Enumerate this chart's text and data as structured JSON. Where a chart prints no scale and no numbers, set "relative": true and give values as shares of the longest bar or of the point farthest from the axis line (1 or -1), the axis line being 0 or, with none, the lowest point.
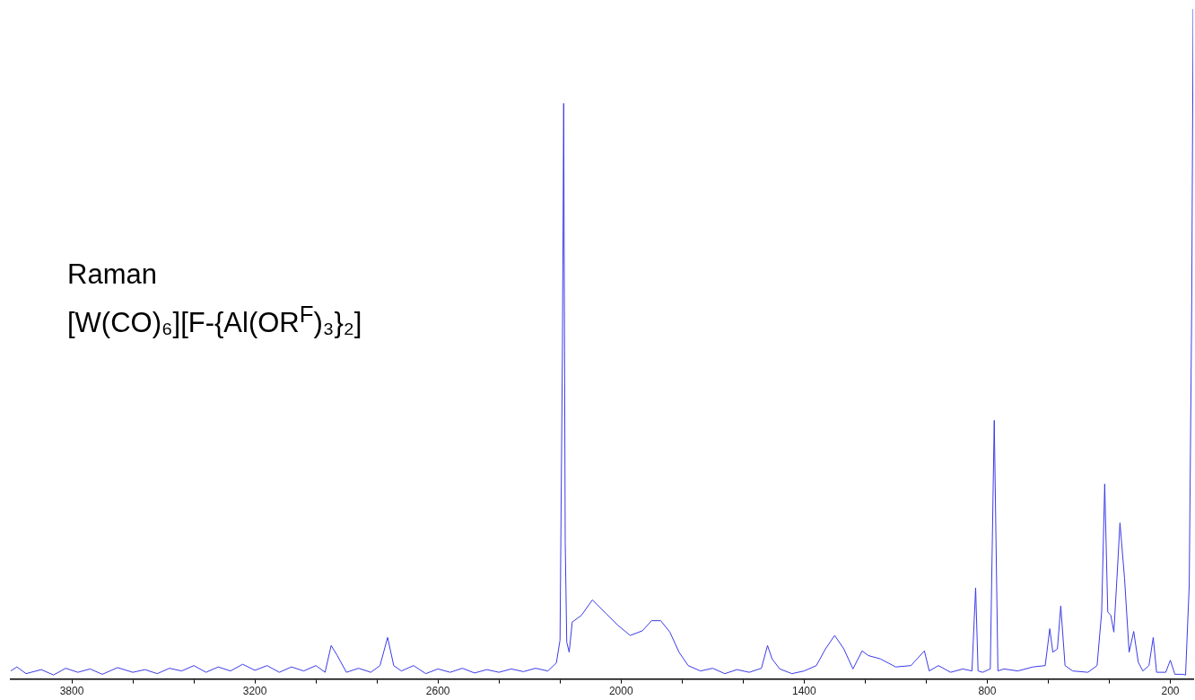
{
  "chart_data": {
    "type": "line",
    "relative": true,
    "annotations": [
      "Raman",
      "[W(CO)₆][F-{Al(OR$^{F}$)₃}₂]"
    ],
    "xlim": [
      4000,
      125
    ],
    "xticks": [
      {
        "value": 3800,
        "label": "3800"
      },
      {
        "value": 3600,
        "label": null
      },
      {
        "value": 3400,
        "label": null
      },
      {
        "value": 3200,
        "label": "3200"
      },
      {
        "value": 3000,
        "label": null
      },
      {
        "value": 2800,
        "label": null
      },
      {
        "value": 2600,
        "label": "2600"
      },
      {
        "value": 2400,
        "label": null
      },
      {
        "value": 2200,
        "label": null
      },
      {
        "value": 2000,
        "label": "2000"
      },
      {
        "value": 1800,
        "label": null
      },
      {
        "value": 1600,
        "label": null
      },
      {
        "value": 1400,
        "label": "1400"
      },
      {
        "value": 1200,
        "label": null
      },
      {
        "value": 1000,
        "label": null
      },
      {
        "value": 800,
        "label": "800"
      },
      {
        "value": 600,
        "label": null
      },
      {
        "value": 400,
        "label": null
      },
      {
        "value": 200,
        "label": "200"
      }
    ],
    "marker": "none",
    "line_style": "solid",
    "series": [
      {
        "color": "#3b3be8",
        "x": [
          4000,
          3980,
          3950,
          3900,
          3860,
          3820,
          3780,
          3740,
          3700,
          3650,
          3600,
          3560,
          3520,
          3480,
          3440,
          3400,
          3360,
          3320,
          3280,
          3240,
          3200,
          3160,
          3120,
          3080,
          3040,
          3000,
          2970,
          2950,
          2930,
          2900,
          2860,
          2820,
          2790,
          2765,
          2745,
          2720,
          2680,
          2640,
          2600,
          2560,
          2520,
          2480,
          2440,
          2400,
          2360,
          2320,
          2280,
          2240,
          2212,
          2200,
          2192,
          2188,
          2183,
          2178,
          2170,
          2160,
          2130,
          2094,
          2050,
          2010,
          1970,
          1930,
          1900,
          1870,
          1840,
          1810,
          1780,
          1740,
          1700,
          1660,
          1620,
          1580,
          1540,
          1520,
          1505,
          1480,
          1440,
          1400,
          1360,
          1330,
          1300,
          1270,
          1240,
          1210,
          1190,
          1150,
          1100,
          1050,
          1006,
          990,
          960,
          920,
          880,
          850,
          838,
          830,
          815,
          790,
          777,
          765,
          745,
          700,
          650,
          610,
          595,
          585,
          570,
          559,
          545,
          520,
          470,
          440,
          425,
          415,
          405,
          395,
          385,
          375,
          365,
          350,
          335,
          320,
          305,
          290,
          270,
          256,
          245,
          215,
          200,
          185,
          160,
          150,
          138,
          130,
          125
        ],
        "values": [
          0.012,
          0.018,
          0.008,
          0.014,
          0.006,
          0.016,
          0.01,
          0.015,
          0.007,
          0.017,
          0.01,
          0.014,
          0.008,
          0.016,
          0.012,
          0.02,
          0.01,
          0.018,
          0.012,
          0.022,
          0.013,
          0.02,
          0.01,
          0.018,
          0.012,
          0.02,
          0.01,
          0.05,
          0.035,
          0.01,
          0.016,
          0.01,
          0.02,
          0.062,
          0.02,
          0.012,
          0.02,
          0.008,
          0.015,
          0.01,
          0.016,
          0.009,
          0.014,
          0.01,
          0.015,
          0.011,
          0.016,
          0.012,
          0.024,
          0.058,
          0.5,
          0.859,
          0.206,
          0.055,
          0.04,
          0.085,
          0.095,
          0.118,
          0.098,
          0.08,
          0.065,
          0.072,
          0.087,
          0.087,
          0.07,
          0.04,
          0.02,
          0.012,
          0.016,
          0.008,
          0.014,
          0.01,
          0.016,
          0.05,
          0.03,
          0.015,
          0.008,
          0.012,
          0.02,
          0.045,
          0.065,
          0.045,
          0.015,
          0.042,
          0.035,
          0.03,
          0.018,
          0.02,
          0.042,
          0.012,
          0.02,
          0.01,
          0.015,
          0.012,
          0.136,
          0.012,
          0.01,
          0.015,
          0.386,
          0.012,
          0.015,
          0.012,
          0.018,
          0.02,
          0.075,
          0.04,
          0.045,
          0.109,
          0.02,
          0.012,
          0.01,
          0.02,
          0.1,
          0.291,
          0.1,
          0.095,
          0.07,
          0.15,
          0.233,
          0.15,
          0.04,
          0.071,
          0.025,
          0.012,
          0.02,
          0.062,
          0.01,
          0.01,
          0.028,
          0.007,
          0.007,
          0.006,
          0.14,
          0.55,
          1
        ]
      }
    ]
  }
}
